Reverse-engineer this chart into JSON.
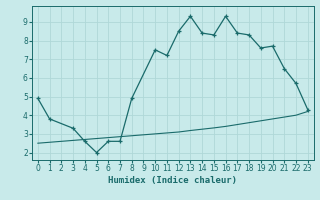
{
  "title": "",
  "xlabel": "Humidex (Indice chaleur)",
  "bg_color": "#c8eaea",
  "grid_color": "#afd8d8",
  "line_color": "#1a6b6b",
  "line1_x": [
    0,
    1,
    3,
    4,
    5,
    6,
    7,
    8,
    10,
    11,
    12,
    13,
    14,
    15,
    16,
    17,
    18,
    19,
    20,
    21,
    22,
    23
  ],
  "line1_y": [
    4.9,
    3.8,
    3.3,
    2.6,
    2.0,
    2.6,
    2.6,
    4.9,
    7.5,
    7.2,
    8.5,
    9.3,
    8.4,
    8.3,
    9.3,
    8.4,
    8.3,
    7.6,
    7.7,
    6.5,
    5.7,
    4.3
  ],
  "line2_x": [
    0,
    1,
    2,
    3,
    4,
    5,
    6,
    7,
    8,
    9,
    10,
    11,
    12,
    13,
    14,
    15,
    16,
    17,
    18,
    19,
    20,
    21,
    22,
    23
  ],
  "line2_y": [
    2.5,
    2.55,
    2.6,
    2.65,
    2.7,
    2.75,
    2.8,
    2.85,
    2.9,
    2.95,
    3.0,
    3.05,
    3.1,
    3.18,
    3.25,
    3.32,
    3.4,
    3.5,
    3.6,
    3.7,
    3.8,
    3.9,
    4.0,
    4.2
  ],
  "xlim": [
    -0.5,
    23.5
  ],
  "ylim": [
    1.6,
    9.85
  ],
  "yticks": [
    2,
    3,
    4,
    5,
    6,
    7,
    8,
    9
  ],
  "xticks": [
    0,
    1,
    2,
    3,
    4,
    5,
    6,
    7,
    8,
    9,
    10,
    11,
    12,
    13,
    14,
    15,
    16,
    17,
    18,
    19,
    20,
    21,
    22,
    23
  ],
  "tick_fontsize": 5.5,
  "xlabel_fontsize": 6.5
}
